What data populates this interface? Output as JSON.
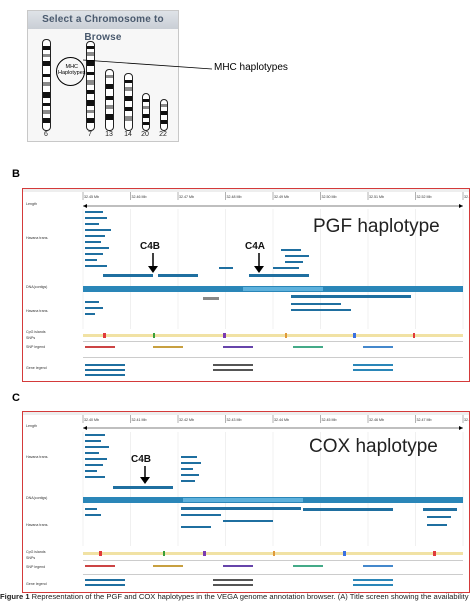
{
  "panel_a": {
    "title": "Select a Chromosome to Browse",
    "mhc_label_line1": "MHC",
    "mhc_label_line2": "Haplotypes",
    "chromosomes": [
      {
        "label": "6"
      },
      {
        "label": "7"
      },
      {
        "label": "13"
      },
      {
        "label": "14"
      },
      {
        "label": "20"
      },
      {
        "label": "22"
      }
    ],
    "callout": "MHC haplotypes"
  },
  "panel_b": {
    "letter": "B",
    "haplotype": "PGF haplotype",
    "gene_tags": [
      "C4B",
      "C4A"
    ],
    "track_labels": [
      "Length",
      "Havana trans.",
      "DNA(contigs)",
      "Havana trans.",
      "CpG islands",
      "SNPs",
      "SNP legend",
      "Gene legend"
    ],
    "tick_labels": [
      "32.45 Mb",
      "32.46 Mb",
      "32.47 Mb",
      "32.48 Mb",
      "32.49 Mb",
      "32.50 Mb",
      "32.51 Mb",
      "32.52 Mb",
      "32.53 Mb"
    ]
  },
  "panel_c": {
    "letter": "C",
    "haplotype": "COX haplotype",
    "gene_tags": [
      "C4B"
    ],
    "track_labels": [
      "Length",
      "Havana trans.",
      "DNA(contigs)",
      "Havana trans.",
      "CpG islands",
      "SNPs",
      "SNP legend",
      "Gene legend"
    ],
    "tick_labels": [
      "32.40 Mb",
      "32.41 Mb",
      "32.42 Mb",
      "32.43 Mb",
      "32.44 Mb",
      "32.45 Mb",
      "32.46 Mb",
      "32.47 Mb",
      "32.48 Mb"
    ]
  },
  "caption": {
    "lead": "Figure 1",
    "text": "Representation of the PGF and COX haplotypes in the VEGA genome annotation browser. (A) Title screen showing the availability"
  },
  "colors": {
    "border": "#d43a3a",
    "gene": "#1f6fa0",
    "contig": "#2a86b8"
  }
}
